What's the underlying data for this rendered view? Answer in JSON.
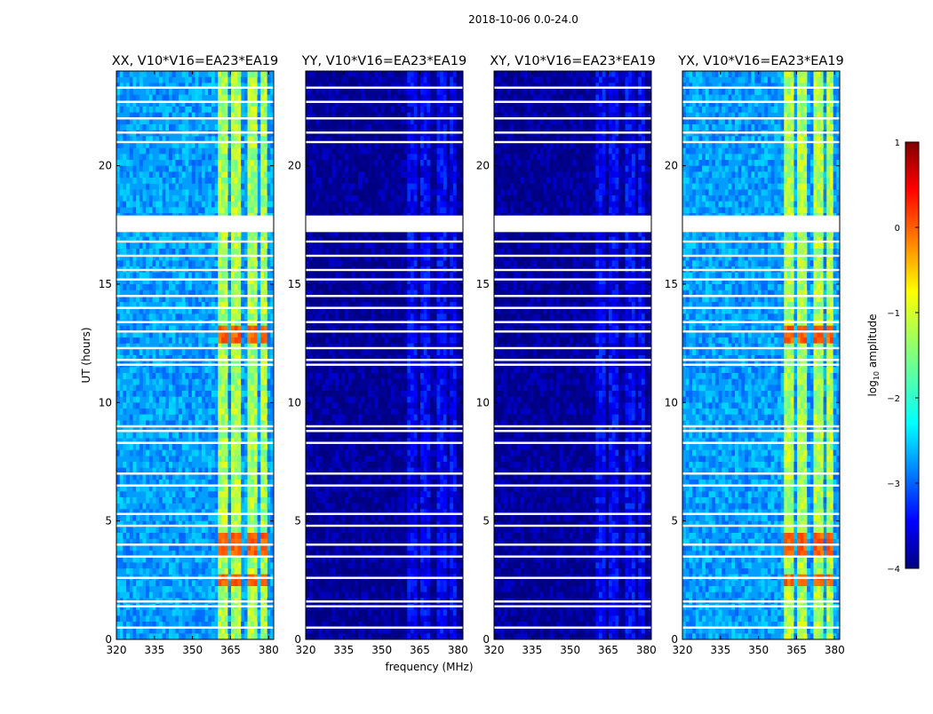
{
  "chart_data": {
    "type": "heatmap",
    "suptitle": "2018-10-06 0.0-24.0",
    "xlabel": "frequency (MHz)",
    "ylabel": "UT (hours)",
    "xlim": [
      320,
      382
    ],
    "ylim": [
      0,
      24
    ],
    "xticks": [
      320,
      335,
      350,
      365,
      380
    ],
    "yticks": [
      0,
      5,
      10,
      15,
      20
    ],
    "colorbar": {
      "label": "log",
      "label_sub": "10",
      "label_rest": " amplitude",
      "range": [
        -4,
        1
      ],
      "ticks": [
        1,
        0,
        -1,
        -2,
        -3,
        -4
      ],
      "tick_labels": [
        "1",
        "0",
        "−1",
        "−2",
        "−3",
        "−4"
      ],
      "colormap": "jet"
    },
    "rfi_band_mhz": [
      360,
      379
    ],
    "rfi_subbands_mhz": [
      [
        360,
        363.5
      ],
      [
        365.5,
        369.5
      ],
      [
        371.5,
        375
      ],
      [
        376.5,
        379
      ]
    ],
    "flagged_hours": [
      0.5,
      1.4,
      1.6,
      2.6,
      3.5,
      4.0,
      4.8,
      5.3,
      6.5,
      7.0,
      8.3,
      8.8,
      9.0,
      11.6,
      11.8,
      12.3,
      13.0,
      13.4,
      14.0,
      14.5,
      15.2,
      15.6,
      16.2,
      16.8,
      21.0,
      21.4,
      22.0,
      22.7,
      23.3
    ],
    "blank_ranges_hours": [
      [
        17.2,
        17.9
      ]
    ],
    "panels": [
      {
        "title": "XX, V10*V16=EA23*EA19",
        "base_log_amp": -2.6,
        "rfi_log_amp": -1.3,
        "peak_log_amp": 0.1
      },
      {
        "title": "YY, V10*V16=EA23*EA19",
        "base_log_amp": -3.9,
        "rfi_log_amp": -3.4,
        "peak_log_amp": -3.1
      },
      {
        "title": "XY, V10*V16=EA23*EA19",
        "base_log_amp": -3.9,
        "rfi_log_amp": -3.4,
        "peak_log_amp": -3.1
      },
      {
        "title": "YX, V10*V16=EA23*EA19",
        "base_log_amp": -2.6,
        "rfi_log_amp": -1.3,
        "peak_log_amp": 0.1
      }
    ]
  }
}
